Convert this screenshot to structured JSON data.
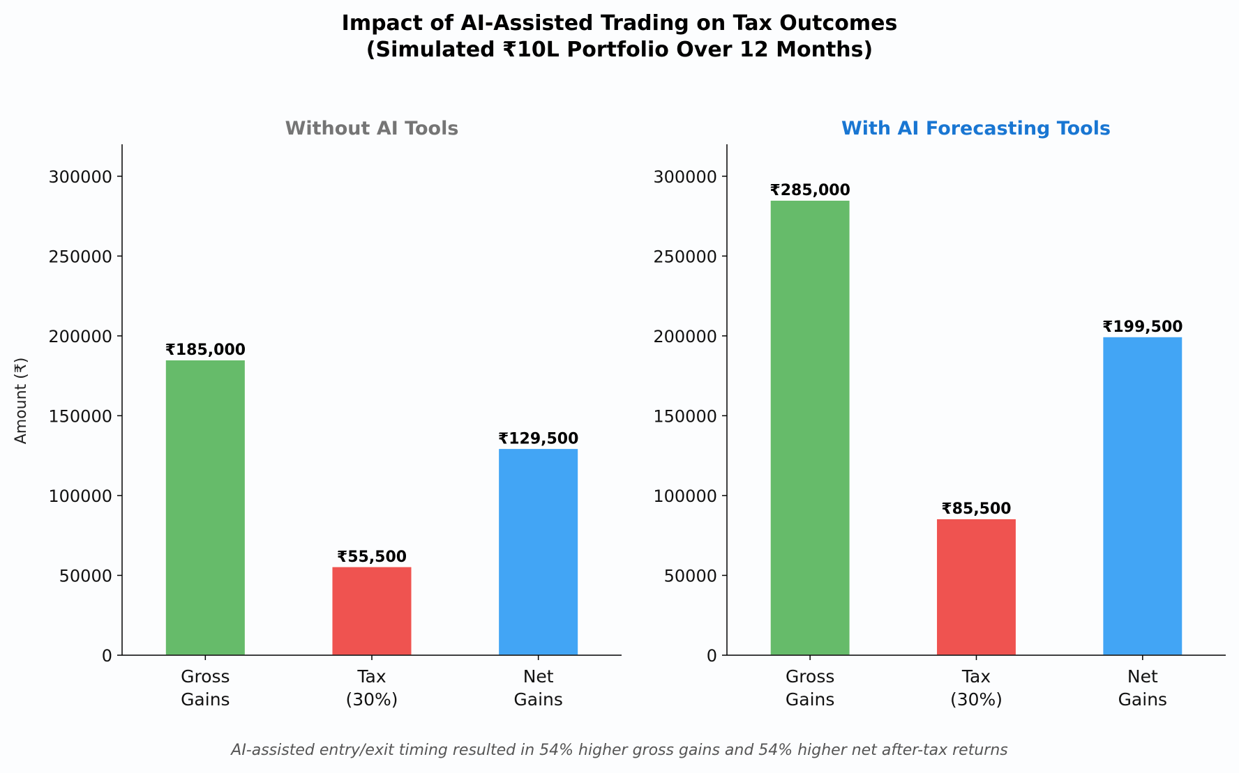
{
  "title_line1": "Impact of AI-Assisted Trading on Tax Outcomes",
  "title_line2": "(Simulated ₹10L Portfolio Over 12 Months)",
  "caption": "AI-assisted entry/exit timing resulted in 54% higher gross gains and 54% higher net after-tax returns",
  "colors": {
    "gross": "#66bb6a",
    "tax": "#ef5350",
    "net": "#42a5f5",
    "title_without": "#757575",
    "title_with": "#1976d2"
  },
  "chart_data": [
    {
      "type": "bar",
      "title": "Without AI Tools",
      "ylabel": "Amount (₹)",
      "xlabel": "",
      "categories": [
        [
          "Gross",
          "Gains"
        ],
        [
          "Tax",
          "(30%)"
        ],
        [
          "Net",
          "Gains"
        ]
      ],
      "values": [
        185000,
        55500,
        129500
      ],
      "value_labels": [
        "₹185,000",
        "₹55,500",
        "₹129,500"
      ],
      "ylim": [
        0,
        320000
      ],
      "yticks": [
        0,
        50000,
        100000,
        150000,
        200000,
        250000,
        300000
      ],
      "ytick_labels": [
        "0",
        "50000",
        "100000",
        "150000",
        "200000",
        "250000",
        "300000"
      ],
      "grid": false
    },
    {
      "type": "bar",
      "title": "With AI Forecasting Tools",
      "ylabel": "",
      "xlabel": "",
      "categories": [
        [
          "Gross",
          "Gains"
        ],
        [
          "Tax",
          "(30%)"
        ],
        [
          "Net",
          "Gains"
        ]
      ],
      "values": [
        285000,
        85500,
        199500
      ],
      "value_labels": [
        "₹285,000",
        "₹85,500",
        "₹199,500"
      ],
      "ylim": [
        0,
        320000
      ],
      "yticks": [
        0,
        50000,
        100000,
        150000,
        200000,
        250000,
        300000
      ],
      "ytick_labels": [
        "0",
        "50000",
        "100000",
        "150000",
        "200000",
        "250000",
        "300000"
      ],
      "grid": false
    }
  ]
}
